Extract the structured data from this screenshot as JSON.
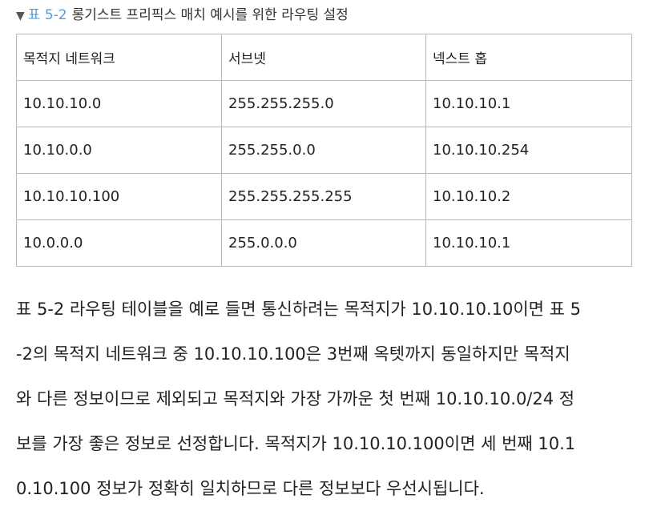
{
  "caption": {
    "marker": "▼",
    "table_number": "표 5-2",
    "title": "롱기스트 프리픽스 매치 예시를 위한 라우팅 설정"
  },
  "table": {
    "headers": [
      "목적지 네트워크",
      "서브넷",
      "넥스트 홉"
    ],
    "rows": [
      [
        "10.10.10.0",
        "255.255.255.0",
        "10.10.10.1"
      ],
      [
        "10.10.0.0",
        "255.255.0.0",
        "10.10.10.254"
      ],
      [
        "10.10.10.100",
        "255.255.255.255",
        "10.10.10.2"
      ],
      [
        "10.0.0.0",
        "255.0.0.0",
        "10.10.10.1"
      ]
    ]
  },
  "paragraph": {
    "lines": [
      "표 5-2 라우팅 테이블을 예로 들면 통신하려는 목적지가 10.10.10.10이면 표 5",
      "-2의 목적지 네트워크 중 10.10.10.100은 3번째 옥텟까지 동일하지만 목적지",
      "와 다른 정보이므로 제외되고 목적지와 가장 가까운 첫 번째 10.10.10.0/24 정",
      "보를 가장 좋은 정보로 선정합니다. 목적지가 10.10.10.100이면 세 번째 10.1",
      "0.10.100 정보가 정확히 일치하므로 다른 정보보다 우선시됩니다."
    ]
  }
}
